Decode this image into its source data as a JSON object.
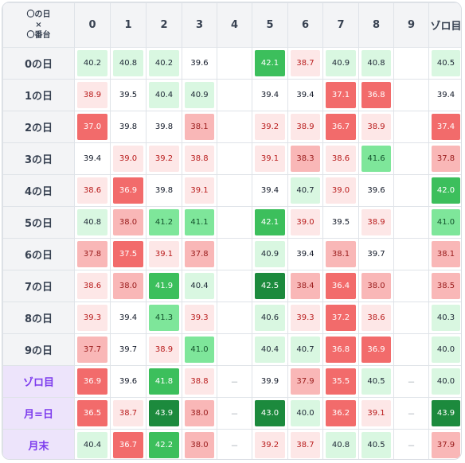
{
  "corner": {
    "line1": "〇の日",
    "line2": "×",
    "line3": "〇番台"
  },
  "columns": [
    "0",
    "1",
    "2",
    "3",
    "4",
    "5",
    "6",
    "7",
    "8",
    "9",
    "ゾロ目"
  ],
  "rows": [
    {
      "label": "0の日",
      "values": [
        "40.2",
        "40.8",
        "40.2",
        "39.6",
        "",
        "42.1",
        "38.7",
        "40.9",
        "40.8",
        "",
        "40.5"
      ]
    },
    {
      "label": "1の日",
      "values": [
        "38.9",
        "39.5",
        "40.4",
        "40.9",
        "",
        "39.4",
        "39.4",
        "37.1",
        "36.8",
        "",
        "39.4"
      ]
    },
    {
      "label": "2の日",
      "values": [
        "37.0",
        "39.8",
        "39.8",
        "38.1",
        "",
        "39.2",
        "38.9",
        "36.7",
        "38.9",
        "",
        "37.4"
      ]
    },
    {
      "label": "3の日",
      "values": [
        "39.4",
        "39.0",
        "39.2",
        "38.8",
        "",
        "39.1",
        "38.3",
        "38.6",
        "41.6",
        "",
        "37.8"
      ]
    },
    {
      "label": "4の日",
      "values": [
        "38.6",
        "36.9",
        "39.8",
        "39.1",
        "",
        "39.4",
        "40.7",
        "39.0",
        "39.6",
        "",
        "42.0"
      ]
    },
    {
      "label": "5の日",
      "values": [
        "40.8",
        "38.0",
        "41.2",
        "41.1",
        "",
        "42.1",
        "39.0",
        "39.5",
        "38.9",
        "",
        "41.0"
      ]
    },
    {
      "label": "6の日",
      "values": [
        "37.8",
        "37.5",
        "39.1",
        "37.8",
        "",
        "40.9",
        "39.4",
        "38.1",
        "39.7",
        "",
        "38.1"
      ]
    },
    {
      "label": "7の日",
      "values": [
        "38.6",
        "38.0",
        "41.9",
        "40.4",
        "",
        "42.5",
        "38.4",
        "36.4",
        "38.0",
        "",
        "38.5"
      ]
    },
    {
      "label": "8の日",
      "values": [
        "39.3",
        "39.4",
        "41.3",
        "39.3",
        "",
        "40.6",
        "39.3",
        "37.2",
        "38.6",
        "",
        "40.3"
      ]
    },
    {
      "label": "9の日",
      "values": [
        "37.7",
        "39.7",
        "38.9",
        "41.0",
        "",
        "40.4",
        "40.7",
        "36.8",
        "36.9",
        "",
        "40.0"
      ]
    },
    {
      "label": "ゾロ目",
      "special": true,
      "values": [
        "36.9",
        "39.6",
        "41.8",
        "38.8",
        "－",
        "39.9",
        "37.9",
        "35.5",
        "40.5",
        "－",
        "40.0"
      ]
    },
    {
      "label": "月=日",
      "special": true,
      "values": [
        "36.5",
        "38.7",
        "43.9",
        "38.0",
        "－",
        "43.0",
        "40.0",
        "36.2",
        "39.1",
        "－",
        "43.9"
      ]
    },
    {
      "label": "月末",
      "special": true,
      "values": [
        "40.4",
        "36.7",
        "42.2",
        "38.0",
        "－",
        "39.2",
        "38.7",
        "40.8",
        "40.5",
        "－",
        "37.9"
      ]
    }
  ],
  "colors": {
    "strong_green": "#1c8a3d",
    "green": "#3cbf5c",
    "light_green": "#7ee69a",
    "pale_green": "#d9f7e1",
    "strong_red": "#f26b6b",
    "red": "#f9b7b7",
    "pale_red": "#fde7e7",
    "neutral": "#ffffff"
  }
}
